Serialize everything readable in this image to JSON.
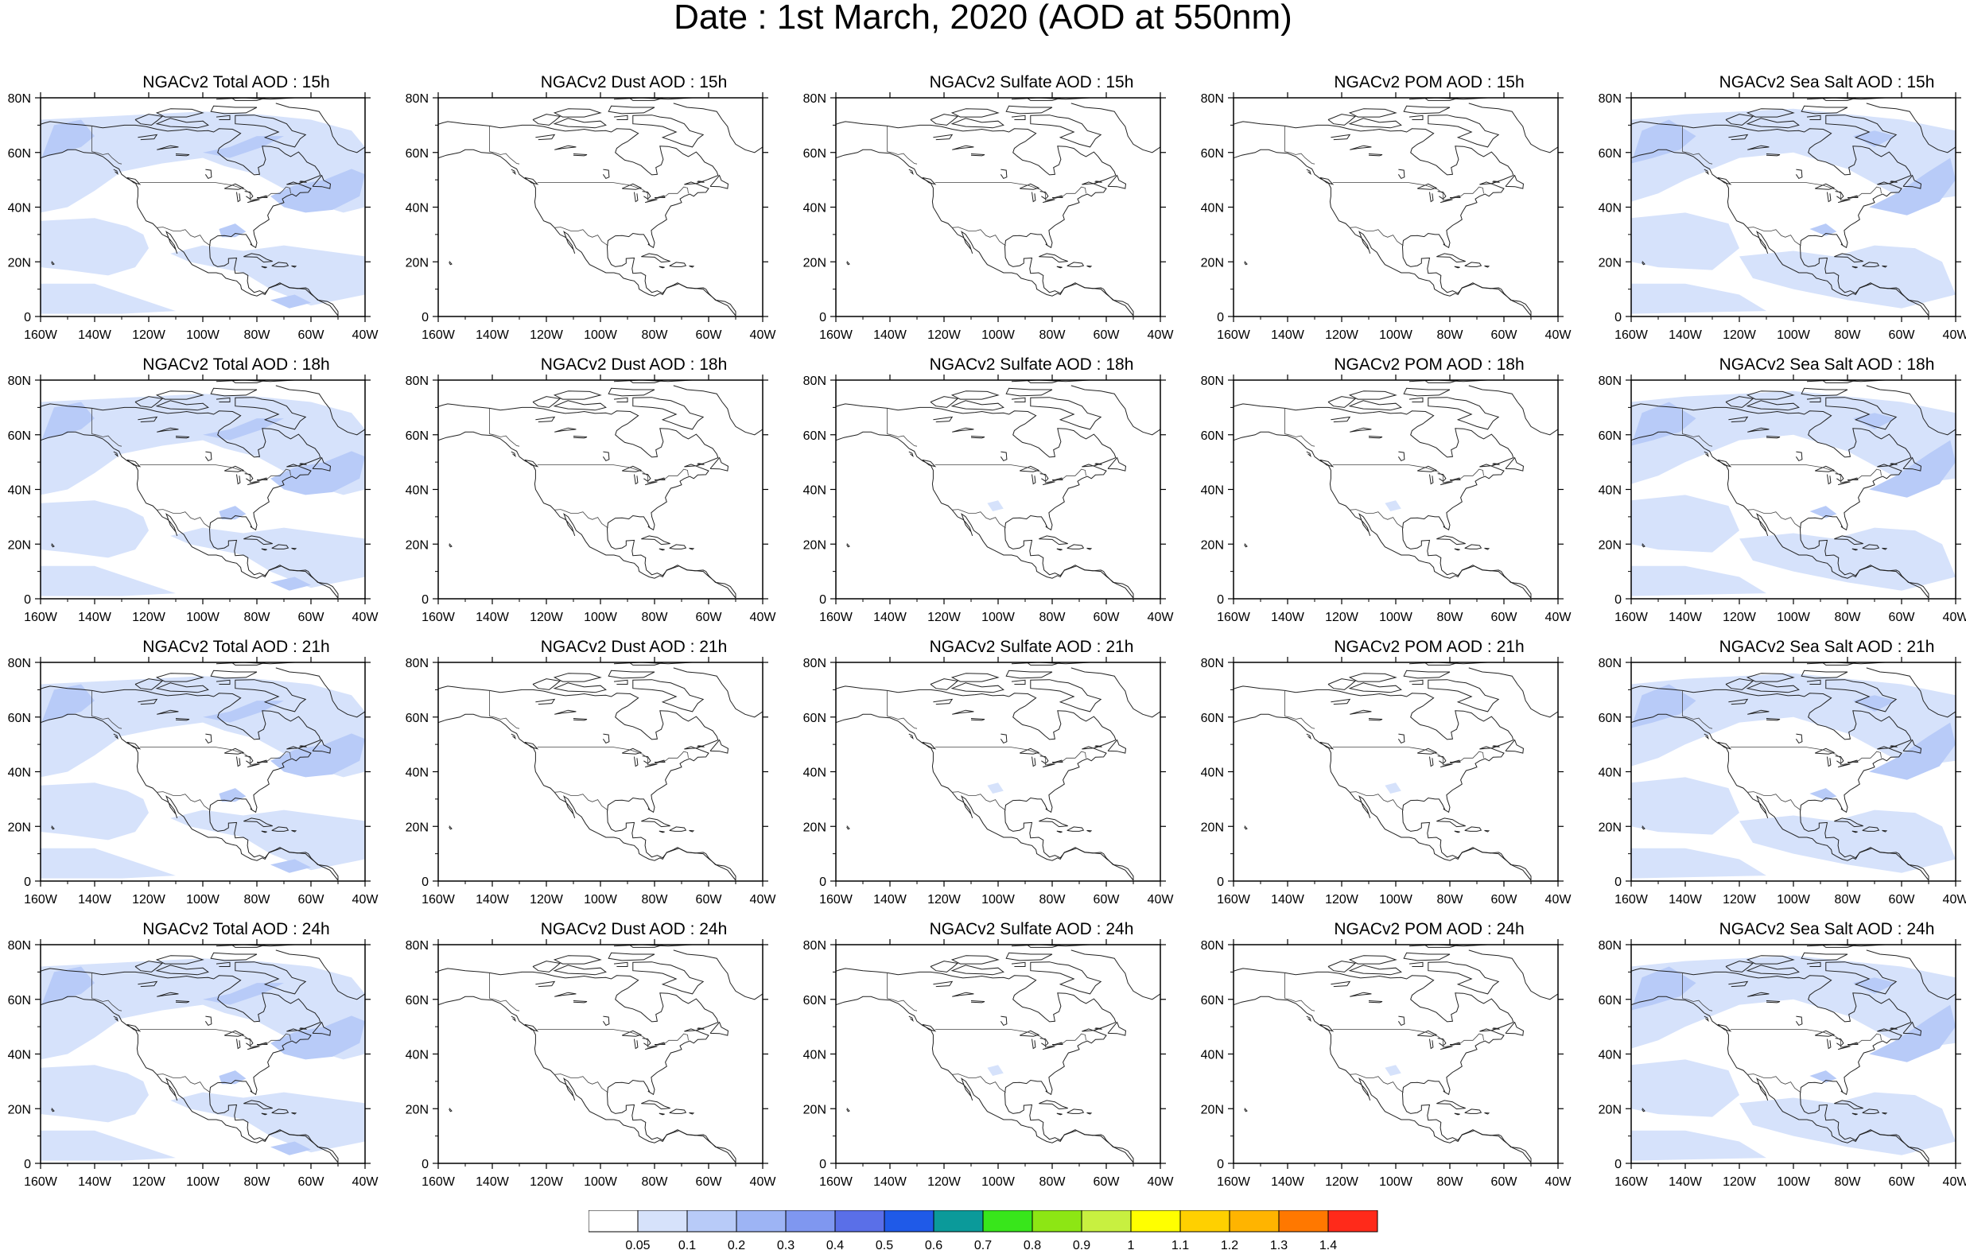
{
  "title": "Date : 1st March, 2020 (AOD at 550nm)",
  "axes": {
    "x_ticks": [
      "160W",
      "140W",
      "120W",
      "100W",
      "80W",
      "60W",
      "40W"
    ],
    "y_ticks": [
      "0",
      "20N",
      "40N",
      "60N",
      "80N"
    ],
    "lon_range": [
      -160,
      -40
    ],
    "lat_range": [
      0,
      80
    ]
  },
  "panels": [
    [
      "NGACv2 Total AOD : 15h",
      "NGACv2 Dust AOD : 15h",
      "NGACv2 Sulfate AOD : 15h",
      "NGACv2 POM AOD : 15h",
      "NGACv2 Sea Salt AOD : 15h"
    ],
    [
      "NGACv2 Total AOD : 18h",
      "NGACv2 Dust AOD : 18h",
      "NGACv2 Sulfate AOD : 18h",
      "NGACv2 POM AOD : 18h",
      "NGACv2 Sea Salt AOD : 18h"
    ],
    [
      "NGACv2 Total AOD : 21h",
      "NGACv2 Dust AOD : 21h",
      "NGACv2 Sulfate AOD : 21h",
      "NGACv2 POM AOD : 21h",
      "NGACv2 Sea Salt AOD : 21h"
    ],
    [
      "NGACv2 Total AOD : 24h",
      "NGACv2 Dust AOD : 24h",
      "NGACv2 Sulfate AOD : 24h",
      "NGACv2 POM AOD : 24h",
      "NGACv2 Sea Salt  AOD : 24h"
    ]
  ],
  "colorbar": {
    "labels": [
      "0.05",
      "0.1",
      "0.2",
      "0.3",
      "0.4",
      "0.5",
      "0.6",
      "0.7",
      "0.8",
      "0.9",
      "1",
      "1.1",
      "1.2",
      "1.3",
      "1.4"
    ],
    "colors": [
      "#ffffff",
      "#d6e2fb",
      "#b8cbf8",
      "#9db4f5",
      "#7f97f0",
      "#5a6fe8",
      "#1f5ae8",
      "#0b9a9a",
      "#38e61b",
      "#8de614",
      "#c8f040",
      "#ffff00",
      "#ffd000",
      "#ffb400",
      "#ff7800",
      "#ff2a1a"
    ]
  },
  "shading": {
    "total": "#b8cbf8",
    "total_light": "#d6e2fb",
    "seasalt": "#b8cbf8",
    "seasalt_light": "#d6e2fb"
  }
}
